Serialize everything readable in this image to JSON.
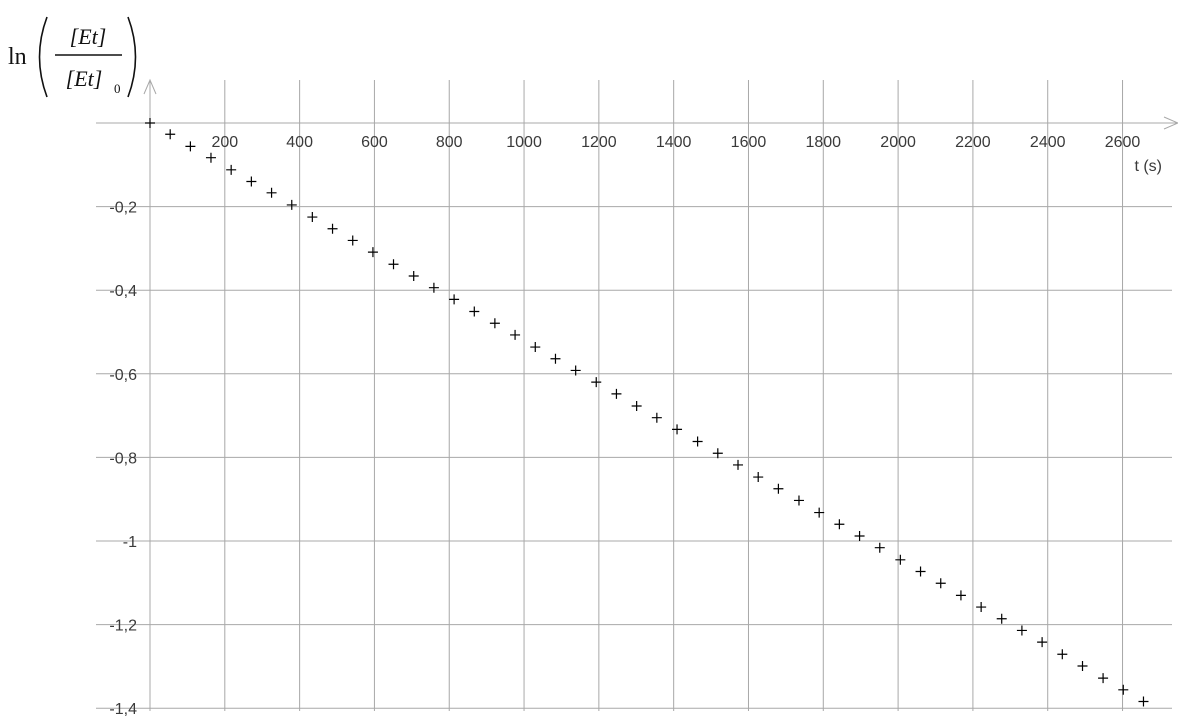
{
  "chart_data": {
    "type": "scatter",
    "title": "",
    "xlabel": "t (s)",
    "ylabel": {
      "fn": "ln",
      "numerator": "[Et]",
      "denominator": "[Et]",
      "denominator_subscript": "0"
    },
    "xlim": [
      0,
      2730
    ],
    "ylim": [
      -1.42,
      0
    ],
    "x_ticks": [
      200,
      400,
      600,
      800,
      1000,
      1200,
      1400,
      1600,
      1800,
      2000,
      2200,
      2400,
      2600
    ],
    "x_tick_labels": [
      "200",
      "400",
      "600",
      "800",
      "1000",
      "1200",
      "1400",
      "1600",
      "1800",
      "2000",
      "2200",
      "2400",
      "2600"
    ],
    "y_ticks": [
      -0.2,
      -0.4,
      -0.6,
      -0.8,
      -1.0,
      -1.2,
      -1.4
    ],
    "y_tick_labels": [
      "-0,2",
      "-0,4",
      "-0,6",
      "-0,8",
      "-1",
      "-1,2",
      "-1,4"
    ],
    "grid": true,
    "legend": "none",
    "marker": "plus",
    "marker_color": "#000000",
    "grid_color": "#a8a8a8",
    "axis_color": "#a8a8a8",
    "x": [
      0,
      54,
      108,
      163,
      217,
      271,
      325,
      379,
      434,
      488,
      542,
      596,
      651,
      705,
      759,
      813,
      867,
      922,
      976,
      1030,
      1084,
      1138,
      1193,
      1247,
      1301,
      1355,
      1409,
      1464,
      1518,
      1572,
      1626,
      1680,
      1735,
      1789,
      1843,
      1897,
      1951,
      2006,
      2060,
      2114,
      2168,
      2222,
      2277,
      2331,
      2385,
      2439,
      2493,
      2548,
      2602,
      2656
    ],
    "y": [
      0,
      -0.027,
      -0.056,
      -0.083,
      -0.112,
      -0.14,
      -0.167,
      -0.196,
      -0.225,
      -0.253,
      -0.281,
      -0.309,
      -0.338,
      -0.366,
      -0.394,
      -0.422,
      -0.451,
      -0.479,
      -0.507,
      -0.536,
      -0.564,
      -0.592,
      -0.62,
      -0.648,
      -0.677,
      -0.705,
      -0.733,
      -0.762,
      -0.79,
      -0.818,
      -0.847,
      -0.875,
      -0.903,
      -0.932,
      -0.96,
      -0.988,
      -1.016,
      -1.045,
      -1.073,
      -1.101,
      -1.13,
      -1.158,
      -1.186,
      -1.214,
      -1.242,
      -1.271,
      -1.299,
      -1.328,
      -1.356,
      -1.384
    ]
  }
}
